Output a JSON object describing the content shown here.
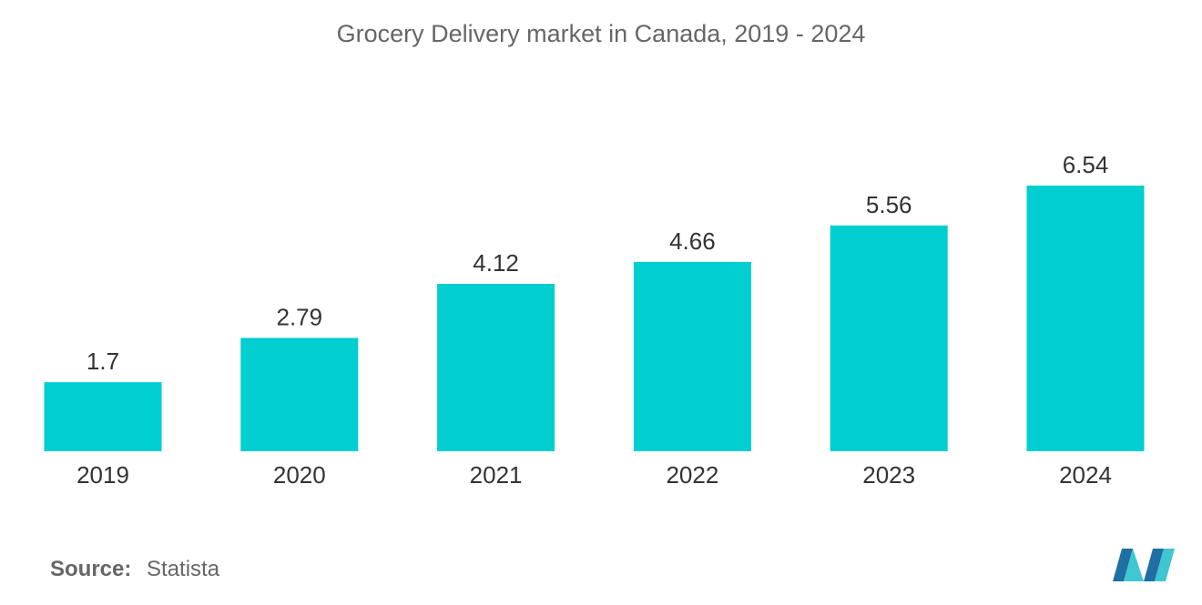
{
  "chart_data": {
    "type": "bar",
    "title": "Grocery Delivery market in Canada, 2019 - 2024",
    "categories": [
      "2019",
      "2020",
      "2021",
      "2022",
      "2023",
      "2024"
    ],
    "values": [
      1.7,
      2.79,
      4.12,
      4.66,
      5.56,
      6.54
    ],
    "value_labels": [
      "1.7",
      "2.79",
      "4.12",
      "4.66",
      "5.56",
      "6.54"
    ],
    "xlabel": "",
    "ylabel": "",
    "ylim": [
      0,
      6.54
    ],
    "grid": false,
    "legend": "none",
    "bar_color": "#00ced1"
  },
  "source": {
    "label": "Source:",
    "value": "Statista"
  },
  "colors": {
    "text": "#666666",
    "label": "#333333",
    "logo_dark": "#1f6fa3",
    "logo_light": "#3fc6d0"
  },
  "logo": {
    "icon": "mordor-logo-icon"
  }
}
